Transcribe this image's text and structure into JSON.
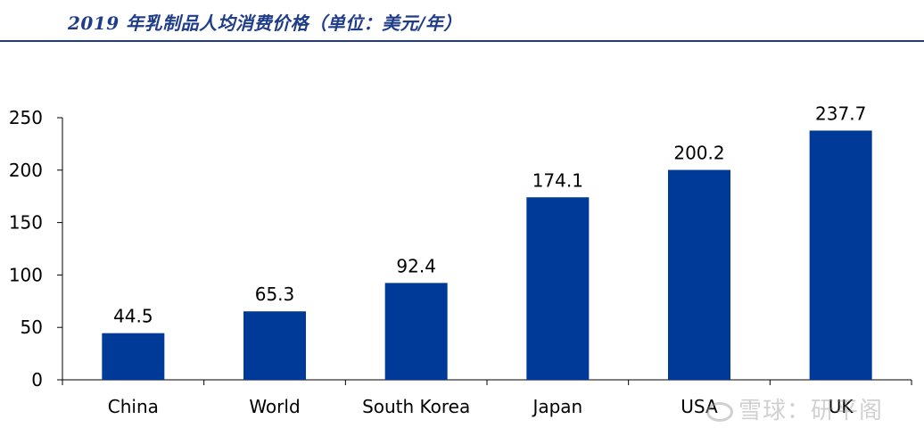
{
  "header": {
    "title": "2019 年乳制品人均消费价格（单位：美元/年）"
  },
  "watermark": {
    "text": "雪球：研平阁"
  },
  "colors": {
    "bar": "#003a99",
    "title": "#1f3c88",
    "axis": "#000000",
    "text": "#000000"
  },
  "chart_data": {
    "type": "bar",
    "title": "2019 年乳制品人均消费价格（单位：美元/年）",
    "xlabel": "",
    "ylabel": "",
    "categories": [
      "China",
      "World",
      "South Korea",
      "Japan",
      "USA",
      "UK"
    ],
    "values": [
      44.5,
      65.3,
      92.4,
      174.1,
      200.2,
      237.7
    ],
    "value_labels": [
      "44.5",
      "65.3",
      "92.4",
      "174.1",
      "200.2",
      "237.7"
    ],
    "ylim": [
      0,
      250
    ],
    "yticks": [
      0,
      50,
      100,
      150,
      200,
      250
    ],
    "ytick_labels": [
      "0",
      "50",
      "100",
      "150",
      "200",
      "250"
    ],
    "grid": false,
    "legend": "none"
  }
}
